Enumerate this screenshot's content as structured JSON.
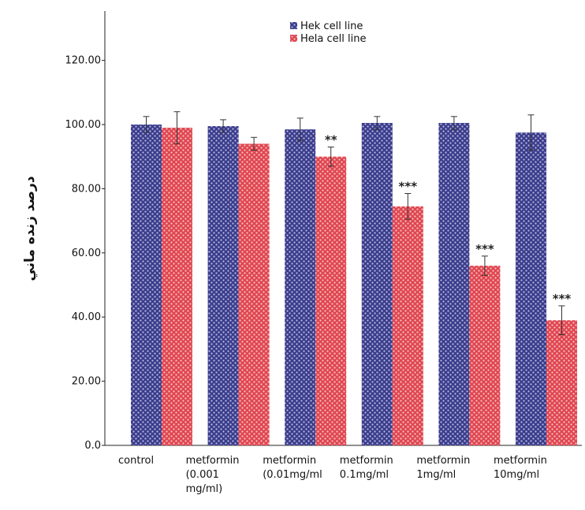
{
  "chart_data": {
    "type": "bar",
    "title": "",
    "xlabel": "",
    "ylabel": "درصد زنده ماني",
    "ylim": [
      0,
      130
    ],
    "yticks": [
      "0.0",
      "20.00",
      "40.00",
      "60.00",
      "80.00",
      "100.00",
      "120.00"
    ],
    "ytick_values": [
      0,
      20,
      40,
      60,
      80,
      100,
      120
    ],
    "categories": [
      [
        "control"
      ],
      [
        "metformin",
        "(0.001",
        "mg/ml)"
      ],
      [
        "metformin",
        "(0.01mg/ml"
      ],
      [
        "metformin",
        "0.1mg/ml"
      ],
      [
        "metformin",
        "1mg/ml"
      ],
      [
        "metformin",
        "10mg/ml"
      ]
    ],
    "series": [
      {
        "name": "Hek cell line",
        "color": "#3b3c8c",
        "values": [
          100,
          99.5,
          98.5,
          100.5,
          100.5,
          97.5
        ],
        "errors": [
          2.5,
          2,
          3.5,
          2,
          2,
          5.5
        ]
      },
      {
        "name": "Hela cell line",
        "color": "#e04650",
        "values": [
          99,
          94,
          90,
          74.5,
          56,
          39
        ],
        "errors": [
          5,
          2,
          3,
          4,
          3,
          4.5
        ]
      }
    ],
    "significance": [
      "",
      "",
      "**",
      "***",
      "***",
      "***"
    ],
    "legend_position": "top-center",
    "grid": false
  }
}
